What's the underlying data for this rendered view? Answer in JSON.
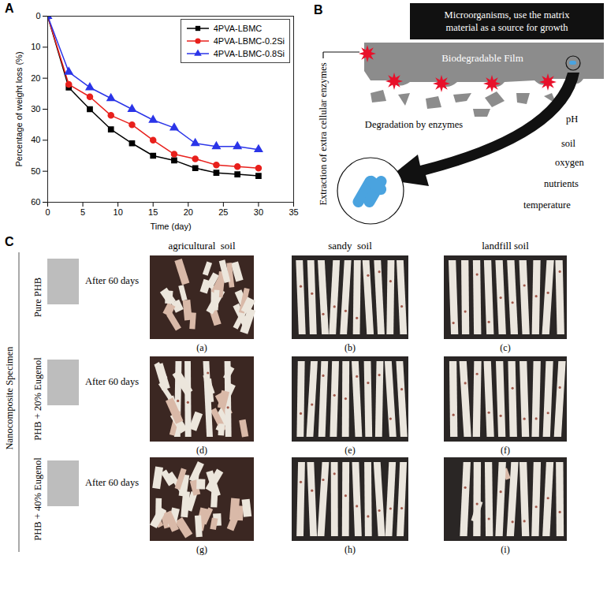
{
  "chart_data": {
    "type": "line",
    "title": "A",
    "xlabel": "Time (day)",
    "ylabel": "Percentage of weight loss (%)",
    "x": [
      0,
      3,
      6,
      9,
      12,
      15,
      18,
      21,
      24,
      27,
      30
    ],
    "xlim": [
      0,
      35
    ],
    "xticks": [
      0,
      5,
      10,
      15,
      20,
      25,
      30,
      35
    ],
    "ylim": [
      60,
      0
    ],
    "yticks": [
      0,
      10,
      20,
      30,
      40,
      50,
      60
    ],
    "grid": false,
    "legend": "upper right",
    "series": [
      {
        "name": "4PVA-LBMC",
        "color": "#000000",
        "marker": "square",
        "line_style": "solid",
        "values": [
          0,
          23,
          30,
          36.5,
          41,
          45,
          46.5,
          49,
          50.5,
          51,
          51.5
        ]
      },
      {
        "name": "4PVA-LBMC-0.2Si",
        "color": "#e8201c",
        "marker": "circle",
        "line_style": "solid",
        "values": [
          0,
          22,
          26,
          32,
          35,
          40,
          44.5,
          46,
          48,
          48.5,
          49
        ]
      },
      {
        "name": "4PVA-LBMC-0.8Si",
        "color": "#2b35e8",
        "marker": "triangle",
        "line_style": "solid",
        "values": [
          0,
          18,
          23,
          26.5,
          30,
          33.5,
          36,
          41,
          42,
          42,
          43
        ]
      }
    ]
  },
  "diagram": {
    "label": "B",
    "header": [
      "Microorganisms, use the matrix",
      "material as a source for growth"
    ],
    "film": "Biodegradable Film",
    "enzymes": "Extraction of extra cellular enzymes",
    "degradation": "Degradation by enzymes",
    "factors": [
      "pH",
      "soil",
      "oxygen",
      "nutrients",
      "temperature"
    ]
  },
  "photo_grid": {
    "label": "C",
    "row_header": "Nanocomposite Specimen",
    "columns": [
      "agricultural  soil",
      "sandy  soil",
      "landfill soil"
    ],
    "rows": [
      {
        "name": "Pure PHB",
        "note": "After 60 days",
        "panels": [
          "(a)",
          "(b)",
          "(c)"
        ]
      },
      {
        "name": "PHB + 20% Eugenol",
        "note": "After 60 days",
        "panels": [
          "(d)",
          "(e)",
          "(f)"
        ]
      },
      {
        "name": "PHB + 40% Eugenol",
        "note": "After 60 days",
        "panels": [
          "(g)",
          "(h)",
          "(i)"
        ]
      }
    ]
  }
}
